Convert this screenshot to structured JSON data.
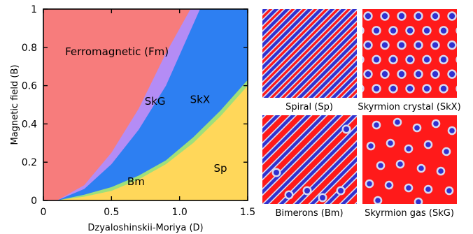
{
  "chart_data": {
    "type": "area",
    "xlabel": "Dzyaloshinskii-Moriya (D)",
    "ylabel": "Magnetic field (B)",
    "xlim": [
      0,
      1.5
    ],
    "ylim": [
      0,
      1
    ],
    "xticks": [
      0,
      0.5,
      1,
      1.5
    ],
    "xtick_labels": [
      "0",
      "0.5",
      "1.0",
      "1.5"
    ],
    "yticks": [
      0,
      0.2,
      0.4,
      0.6,
      0.8,
      1
    ],
    "ytick_labels": [
      "0",
      "0.2",
      "0.4",
      "0.6",
      "0.8",
      "1"
    ],
    "grid": false,
    "boundaries": {
      "sp_bm": {
        "x": [
          0.1,
          0.3,
          0.5,
          0.7,
          0.9,
          1.1,
          1.3,
          1.5
        ],
        "y": [
          0.0,
          0.02,
          0.05,
          0.11,
          0.19,
          0.3,
          0.44,
          0.6
        ]
      },
      "bm_skx": {
        "x": [
          0.1,
          0.3,
          0.5,
          0.7,
          0.9,
          1.1,
          1.3,
          1.5
        ],
        "y": [
          0.0,
          0.03,
          0.07,
          0.13,
          0.21,
          0.33,
          0.47,
          0.63
        ]
      },
      "skx_skg": {
        "x": [
          0.1,
          0.3,
          0.5,
          0.7,
          0.9,
          1.1,
          1.15
        ],
        "y": [
          0.0,
          0.06,
          0.19,
          0.37,
          0.6,
          0.92,
          1.0
        ]
      },
      "skg_fm": {
        "x": [
          0.1,
          0.3,
          0.5,
          0.7,
          0.9,
          1.08
        ],
        "y": [
          0.0,
          0.08,
          0.25,
          0.48,
          0.77,
          1.0
        ]
      }
    },
    "phases": [
      {
        "name": "Ferromagnetic (Fm)",
        "color": "#f77c7c",
        "label_x": 0.54,
        "label_y": 0.76
      },
      {
        "name": "SkG",
        "color": "#b48cf5",
        "label_x": 0.82,
        "label_y": 0.5
      },
      {
        "name": "SkX",
        "color": "#2d7ff2",
        "label_x": 1.15,
        "label_y": 0.51
      },
      {
        "name": "Bm",
        "color": "#9fe07a",
        "label_x": 0.68,
        "label_y": 0.08
      },
      {
        "name": "Sp",
        "color": "#ffd75a",
        "label_x": 1.3,
        "label_y": 0.15
      }
    ]
  },
  "snapshots": [
    {
      "caption": "Spiral (Sp)",
      "pattern": "spiral"
    },
    {
      "caption": "Skyrmion crystal (SkX)",
      "pattern": "skx"
    },
    {
      "caption": "Bimerons (Bm)",
      "pattern": "bimeron"
    },
    {
      "caption": "Skyrmion gas (SkG)",
      "pattern": "skg"
    }
  ],
  "colors": {
    "background_red": "#ff1a1a",
    "stripe_blue": "#3030d0",
    "ring_white": "#d8d8f0"
  }
}
